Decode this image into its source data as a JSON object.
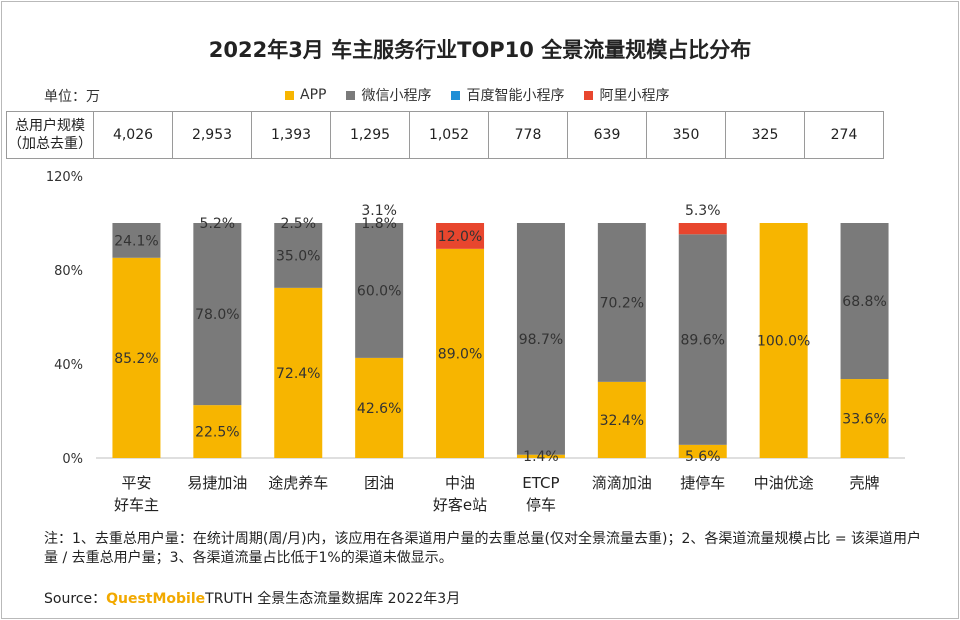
{
  "title": "2022年3月 车主服务行业TOP10 全景流量规模占比分布",
  "unit_label": "单位：万",
  "legend": [
    {
      "label": "APP",
      "color": "#F7B500"
    },
    {
      "label": "微信小程序",
      "color": "#7a7a7a"
    },
    {
      "label": "百度智能小程序",
      "color": "#1f8fd6"
    },
    {
      "label": "阿里小程序",
      "color": "#e8462e"
    }
  ],
  "users_table": {
    "header_line1": "总用户规模",
    "header_line2": "（加总去重）",
    "values": [
      "4,026",
      "2,953",
      "1,393",
      "1,295",
      "1,052",
      "778",
      "639",
      "350",
      "325",
      "274"
    ]
  },
  "chart_data": {
    "type": "bar",
    "stacked": true,
    "ylim": [
      0,
      120
    ],
    "yticks": [
      "0%",
      "40%",
      "80%",
      "120%"
    ],
    "categories": [
      [
        "平安",
        "好车主"
      ],
      [
        "易捷加油"
      ],
      [
        "途虎养车"
      ],
      [
        "团油"
      ],
      [
        "中油",
        "好客e站"
      ],
      [
        "ETCP",
        "停车"
      ],
      [
        "滴滴加油"
      ],
      [
        "捷停车"
      ],
      [
        "中油优途"
      ],
      [
        "壳牌"
      ]
    ],
    "series": [
      {
        "name": "APP",
        "color": "#F7B500",
        "values": [
          85.2,
          22.5,
          72.4,
          42.6,
          89.0,
          1.4,
          32.4,
          5.6,
          100.0,
          33.6
        ]
      },
      {
        "name": "微信小程序",
        "color": "#7a7a7a",
        "values": [
          24.1,
          78.0,
          35.0,
          60.0,
          null,
          98.7,
          70.2,
          89.6,
          null,
          68.8
        ]
      },
      {
        "name": "百度智能小程序",
        "color": "#1f8fd6",
        "values": [
          null,
          null,
          2.5,
          1.8,
          null,
          null,
          null,
          null,
          null,
          null
        ]
      },
      {
        "name": "阿里小程序",
        "color": "#e8462e",
        "values": [
          null,
          5.2,
          null,
          3.1,
          12.0,
          null,
          null,
          5.3,
          null,
          null
        ]
      }
    ]
  },
  "note": "注：1、去重总用户量：在统计周期(周/月)内，该应用在各渠道用户量的去重总量(仅对全景流量去重)；2、各渠道流量规模占比 = 该渠道用户量 / 去重总用户量；3、各渠道流量占比低于1%的渠道未做显示。",
  "source": {
    "prefix": "Source：",
    "brand": "QuestMobile",
    "rest": "TRUTH 全景生态流量数据库 2022年3月"
  }
}
